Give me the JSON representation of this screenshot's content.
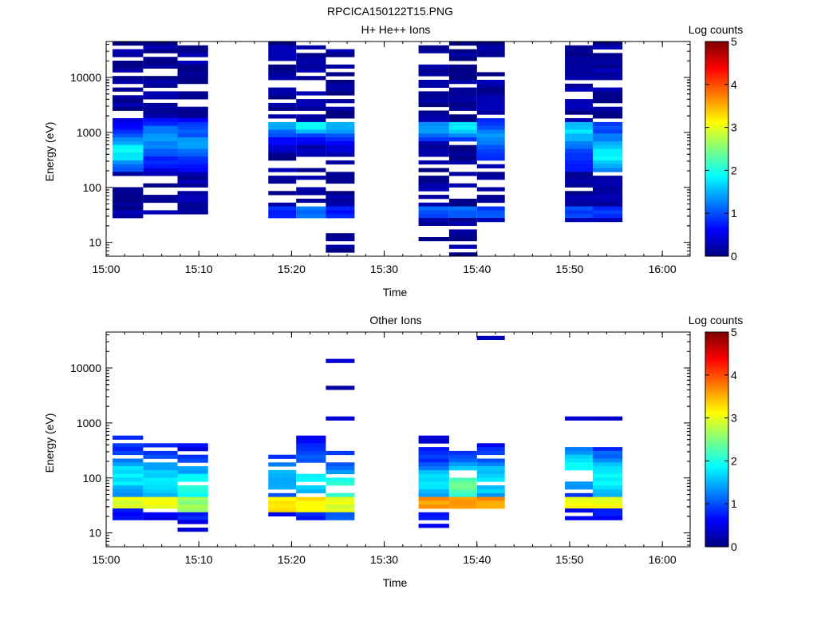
{
  "figure_title": "RPCICA150122T15.PNG",
  "chart_data": [
    {
      "type": "heatmap",
      "title": "H+ He++ Ions",
      "xlabel": "Time",
      "ylabel": "Energy (eV)",
      "colorbar": {
        "label": "Log counts",
        "range": [
          0,
          5
        ],
        "ticks": [
          "0",
          "1",
          "2",
          "3",
          "4",
          "5"
        ]
      },
      "x_ticks": [
        "15:00",
        "15:10",
        "15:20",
        "15:30",
        "15:40",
        "15:50",
        "16:00"
      ],
      "y_ticks": [
        "10",
        "100",
        "1000",
        "10000"
      ],
      "y_scale": "log",
      "ylim": [
        5.6,
        45000
      ],
      "xlim": [
        "15:00",
        "16:03"
      ],
      "columns": [
        {
          "t0": 0.7,
          "t1": 4.0,
          "bands": [
            {
              "emin": 28,
              "emax": 45000,
              "base": 0.15,
              "amp": 0,
              "center": 500,
              "width": 0.5,
              "drop": 0.35,
              "seed": 11
            },
            {
              "emin": 200,
              "emax": 1800,
              "base": 0.5,
              "amp": 1.3,
              "center": 450,
              "width": 0.35,
              "drop": 0,
              "seed": 12
            }
          ]
        },
        {
          "t0": 4.0,
          "t1": 7.7,
          "bands": [
            {
              "emin": 32,
              "emax": 45000,
              "base": 0.15,
              "amp": 0,
              "center": 500,
              "width": 0.5,
              "drop": 0.4,
              "seed": 21
            },
            {
              "emin": 200,
              "emax": 1800,
              "base": 0.5,
              "amp": 0.9,
              "center": 700,
              "width": 0.35,
              "drop": 0,
              "seed": 22
            }
          ]
        },
        {
          "t0": 7.7,
          "t1": 11.0,
          "bands": [
            {
              "emin": 28,
              "emax": 38000,
              "base": 0.15,
              "amp": 0,
              "center": 500,
              "width": 0.5,
              "drop": 0.3,
              "seed": 31
            },
            {
              "emin": 200,
              "emax": 1800,
              "base": 0.5,
              "amp": 0.8,
              "center": 600,
              "width": 0.35,
              "drop": 0,
              "seed": 32
            }
          ]
        },
        {
          "t0": 17.5,
          "t1": 20.5,
          "bands": [
            {
              "emin": 22,
              "emax": 45000,
              "base": 0.15,
              "amp": 0,
              "center": 500,
              "width": 0.5,
              "drop": 0.3,
              "seed": 41
            },
            {
              "emin": 400,
              "emax": 1600,
              "base": 0.3,
              "amp": 1.1,
              "center": 1300,
              "width": 0.25,
              "drop": 0,
              "seed": 42
            },
            {
              "emin": 28,
              "emax": 42,
              "base": 0.9,
              "amp": 0,
              "center": 35,
              "width": 0.2,
              "drop": 0,
              "seed": 43
            }
          ]
        },
        {
          "t0": 20.5,
          "t1": 23.7,
          "bands": [
            {
              "emin": 28,
              "emax": 40000,
              "base": 0.15,
              "amp": 0,
              "center": 500,
              "width": 0.5,
              "drop": 0.35,
              "seed": 51
            },
            {
              "emin": 400,
              "emax": 1600,
              "base": 0.3,
              "amp": 1.6,
              "center": 1300,
              "width": 0.2,
              "drop": 0,
              "seed": 52
            },
            {
              "emin": 28,
              "emax": 42,
              "base": 1.1,
              "amp": 0,
              "center": 35,
              "width": 0.2,
              "drop": 0,
              "seed": 53
            }
          ]
        },
        {
          "t0": 23.7,
          "t1": 26.8,
          "bands": [
            {
              "emin": 6,
              "emax": 40000,
              "base": 0.1,
              "amp": 0,
              "center": 500,
              "width": 0.5,
              "drop": 0.45,
              "seed": 61
            },
            {
              "emin": 400,
              "emax": 1600,
              "base": 0.3,
              "amp": 1.2,
              "center": 1300,
              "width": 0.25,
              "drop": 0,
              "seed": 62
            },
            {
              "emin": 28,
              "emax": 48,
              "base": 0.8,
              "amp": 0,
              "center": 35,
              "width": 0.2,
              "drop": 0,
              "seed": 63
            }
          ]
        },
        {
          "t0": 33.7,
          "t1": 37.0,
          "bands": [
            {
              "emin": 11,
              "emax": 40000,
              "base": 0.12,
              "amp": 0,
              "center": 500,
              "width": 0.5,
              "drop": 0.35,
              "seed": 71
            },
            {
              "emin": 700,
              "emax": 1600,
              "base": 0.5,
              "amp": 0.9,
              "center": 1250,
              "width": 0.2,
              "drop": 0,
              "seed": 72
            },
            {
              "emin": 28,
              "emax": 45,
              "base": 1.0,
              "amp": 0,
              "center": 35,
              "width": 0.2,
              "drop": 0,
              "seed": 73
            }
          ]
        },
        {
          "t0": 37.0,
          "t1": 40.0,
          "bands": [
            {
              "emin": 6,
              "emax": 42000,
              "base": 0.1,
              "amp": 0,
              "center": 500,
              "width": 0.5,
              "drop": 0.4,
              "seed": 81
            },
            {
              "emin": 700,
              "emax": 1600,
              "base": 0.6,
              "amp": 1.3,
              "center": 1250,
              "width": 0.2,
              "drop": 0,
              "seed": 82
            },
            {
              "emin": 28,
              "emax": 45,
              "base": 1.2,
              "amp": 0,
              "center": 35,
              "width": 0.2,
              "drop": 0,
              "seed": 83
            }
          ]
        },
        {
          "t0": 40.0,
          "t1": 43.0,
          "bands": [
            {
              "emin": 22,
              "emax": 45000,
              "base": 0.15,
              "amp": 0,
              "center": 500,
              "width": 0.5,
              "drop": 0.3,
              "seed": 91
            },
            {
              "emin": 300,
              "emax": 1800,
              "base": 0.5,
              "amp": 0.8,
              "center": 800,
              "width": 0.35,
              "drop": 0,
              "seed": 92
            },
            {
              "emin": 28,
              "emax": 45,
              "base": 1.0,
              "amp": 0,
              "center": 35,
              "width": 0.2,
              "drop": 0,
              "seed": 93
            }
          ]
        },
        {
          "t0": 49.5,
          "t1": 52.5,
          "bands": [
            {
              "emin": 22,
              "emax": 40000,
              "base": 0.15,
              "amp": 0,
              "center": 500,
              "width": 0.5,
              "drop": 0.3,
              "seed": 101
            },
            {
              "emin": 200,
              "emax": 1600,
              "base": 0.6,
              "amp": 1.1,
              "center": 1200,
              "width": 0.4,
              "drop": 0,
              "seed": 102
            },
            {
              "emin": 28,
              "emax": 45,
              "base": 1.0,
              "amp": 0,
              "center": 35,
              "width": 0.2,
              "drop": 0,
              "seed": 103
            }
          ]
        },
        {
          "t0": 52.5,
          "t1": 55.7,
          "bands": [
            {
              "emin": 22,
              "emax": 42000,
              "base": 0.15,
              "amp": 0,
              "center": 500,
              "width": 0.5,
              "drop": 0.35,
              "seed": 111
            },
            {
              "emin": 200,
              "emax": 1600,
              "base": 0.6,
              "amp": 1.2,
              "center": 400,
              "width": 0.4,
              "drop": 0,
              "seed": 112
            },
            {
              "emin": 28,
              "emax": 45,
              "base": 0.9,
              "amp": 0,
              "center": 35,
              "width": 0.2,
              "drop": 0,
              "seed": 113
            }
          ]
        }
      ]
    },
    {
      "type": "heatmap",
      "title": "Other Ions",
      "xlabel": "Time",
      "ylabel": "Energy (eV)",
      "colorbar": {
        "label": "Log counts",
        "range": [
          0,
          5
        ],
        "ticks": [
          "0",
          "1",
          "2",
          "3",
          "4",
          "5"
        ]
      },
      "x_ticks": [
        "15:00",
        "15:10",
        "15:20",
        "15:30",
        "15:40",
        "15:50",
        "16:00"
      ],
      "y_ticks": [
        "10",
        "100",
        "1000",
        "10000"
      ],
      "y_scale": "log",
      "ylim": [
        5.6,
        45000
      ],
      "xlim": [
        "15:00",
        "16:03"
      ],
      "columns": [
        {
          "t0": 0.7,
          "t1": 4.0,
          "bands": [
            {
              "emin": 16,
              "emax": 550,
              "base": 0.6,
              "amp": 1.2,
              "center": 100,
              "width": 0.45,
              "drop": 0.12,
              "seed": 211
            },
            {
              "emin": 26,
              "emax": 42,
              "base": 3.0,
              "amp": 0,
              "center": 33,
              "width": 0.1,
              "drop": 0,
              "seed": 212
            }
          ]
        },
        {
          "t0": 4.0,
          "t1": 7.7,
          "bands": [
            {
              "emin": 16,
              "emax": 400,
              "base": 0.5,
              "amp": 1.3,
              "center": 90,
              "width": 0.45,
              "drop": 0.12,
              "seed": 221
            },
            {
              "emin": 26,
              "emax": 42,
              "base": 3.1,
              "amp": 0,
              "center": 33,
              "width": 0.1,
              "drop": 0,
              "seed": 222
            }
          ]
        },
        {
          "t0": 7.7,
          "t1": 11.0,
          "bands": [
            {
              "emin": 11,
              "emax": 400,
              "base": 0.5,
              "amp": 1.6,
              "center": 70,
              "width": 0.4,
              "drop": 0.12,
              "seed": 231
            },
            {
              "emin": 22,
              "emax": 42,
              "base": 2.6,
              "amp": 0,
              "center": 30,
              "width": 0.1,
              "drop": 0,
              "seed": 232
            }
          ]
        },
        {
          "t0": 17.5,
          "t1": 20.5,
          "bands": [
            {
              "emin": 16,
              "emax": 280,
              "base": 0.5,
              "amp": 1.1,
              "center": 100,
              "width": 0.4,
              "drop": 0.15,
              "seed": 241
            },
            {
              "emin": 24,
              "emax": 42,
              "base": 3.2,
              "amp": 0,
              "center": 32,
              "width": 0.1,
              "drop": 0,
              "seed": 242
            }
          ]
        },
        {
          "t0": 20.5,
          "t1": 23.7,
          "bands": [
            {
              "emin": 16,
              "emax": 720,
              "base": 0.6,
              "amp": 1.3,
              "center": 90,
              "width": 0.4,
              "drop": 0.25,
              "seed": 251
            },
            {
              "emin": 24,
              "emax": 42,
              "base": 3.2,
              "amp": 0,
              "center": 32,
              "width": 0.1,
              "drop": 0,
              "seed": 252
            }
          ]
        },
        {
          "t0": 23.7,
          "t1": 26.8,
          "bands": [
            {
              "emin": 16,
              "emax": 300,
              "base": 0.7,
              "amp": 1.4,
              "center": 60,
              "width": 0.4,
              "drop": 0.12,
              "seed": 261
            },
            {
              "emin": 24,
              "emax": 42,
              "base": 3.0,
              "amp": 0,
              "center": 32,
              "width": 0.1,
              "drop": 0,
              "seed": 262
            },
            {
              "emin": 1150,
              "emax": 1300,
              "base": 0.3,
              "amp": 0,
              "center": 1200,
              "width": 0.1,
              "drop": 0,
              "seed": 263
            },
            {
              "emin": 4200,
              "emax": 4700,
              "base": 0.3,
              "amp": 0,
              "center": 4400,
              "width": 0.1,
              "drop": 0,
              "seed": 264
            },
            {
              "emin": 12500,
              "emax": 14000,
              "base": 0.3,
              "amp": 0,
              "center": 13000,
              "width": 0.1,
              "drop": 0,
              "seed": 265
            }
          ]
        },
        {
          "t0": 33.7,
          "t1": 37.0,
          "bands": [
            {
              "emin": 11,
              "emax": 550,
              "base": 0.5,
              "amp": 1.3,
              "center": 80,
              "width": 0.4,
              "drop": 0.15,
              "seed": 271
            },
            {
              "emin": 26,
              "emax": 42,
              "base": 3.6,
              "amp": 0,
              "center": 33,
              "width": 0.1,
              "drop": 0,
              "seed": 272
            }
          ]
        },
        {
          "t0": 37.0,
          "t1": 40.0,
          "bands": [
            {
              "emin": 22,
              "emax": 320,
              "base": 0.8,
              "amp": 1.6,
              "center": 70,
              "width": 0.4,
              "drop": 0.12,
              "seed": 281
            },
            {
              "emin": 26,
              "emax": 42,
              "base": 3.6,
              "amp": 0,
              "center": 33,
              "width": 0.1,
              "drop": 0,
              "seed": 282
            }
          ]
        },
        {
          "t0": 40.0,
          "t1": 43.0,
          "bands": [
            {
              "emin": 22,
              "emax": 400,
              "base": 0.6,
              "amp": 1.2,
              "center": 90,
              "width": 0.4,
              "drop": 0.15,
              "seed": 291
            },
            {
              "emin": 26,
              "emax": 42,
              "base": 3.6,
              "amp": 0,
              "center": 33,
              "width": 0.1,
              "drop": 0,
              "seed": 292
            },
            {
              "emin": 35000,
              "emax": 39000,
              "base": 0.3,
              "amp": 0,
              "center": 37000,
              "width": 0.1,
              "drop": 0,
              "seed": 293
            }
          ]
        },
        {
          "t0": 49.5,
          "t1": 52.5,
          "bands": [
            {
              "emin": 16,
              "emax": 460,
              "base": 0.6,
              "amp": 1.2,
              "center": 150,
              "width": 0.45,
              "drop": 0.15,
              "seed": 301
            },
            {
              "emin": 26,
              "emax": 42,
              "base": 3.0,
              "amp": 0,
              "center": 33,
              "width": 0.1,
              "drop": 0,
              "seed": 302
            },
            {
              "emin": 1150,
              "emax": 1300,
              "base": 0.4,
              "amp": 0,
              "center": 1200,
              "width": 0.1,
              "drop": 0,
              "seed": 303
            }
          ]
        },
        {
          "t0": 52.5,
          "t1": 55.7,
          "bands": [
            {
              "emin": 16,
              "emax": 420,
              "base": 0.6,
              "amp": 1.3,
              "center": 100,
              "width": 0.45,
              "drop": 0.12,
              "seed": 311
            },
            {
              "emin": 26,
              "emax": 42,
              "base": 3.1,
              "amp": 0,
              "center": 33,
              "width": 0.1,
              "drop": 0,
              "seed": 312
            },
            {
              "emin": 1150,
              "emax": 1300,
              "base": 0.4,
              "amp": 0,
              "center": 1200,
              "width": 0.1,
              "drop": 0,
              "seed": 313
            }
          ]
        }
      ]
    }
  ]
}
